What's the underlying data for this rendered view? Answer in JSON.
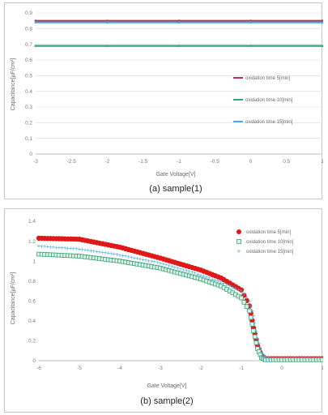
{
  "chart_data": [
    {
      "type": "line",
      "caption": "(a) sample(1)",
      "xlabel": "Gate Voltage[V]",
      "ylabel": "Capacitance[μF/cm²]",
      "xlim": [
        -3,
        1
      ],
      "ylim": [
        0,
        0.9
      ],
      "xticks": [
        "-3",
        "-2.5",
        "-2",
        "-1.5",
        "-1",
        "-0.5",
        "0",
        "0.5",
        "1"
      ],
      "yticks": [
        "0",
        "0.1",
        "0.2",
        "0.3",
        "0.4",
        "0.5",
        "0.6",
        "0.7",
        "0.8",
        "0.9"
      ],
      "grid": true,
      "legend_position": "right",
      "series": [
        {
          "name": "oxidation time 5[min]",
          "color": "#c0304a",
          "x": [
            -3,
            -2,
            -1,
            0,
            1
          ],
          "values": [
            0.85,
            0.85,
            0.85,
            0.85,
            0.85
          ]
        },
        {
          "name": "oxidation time 10[min]",
          "color": "#3aa27a",
          "x": [
            -3,
            -2,
            -1,
            0,
            1
          ],
          "values": [
            0.69,
            0.69,
            0.69,
            0.69,
            0.69
          ]
        },
        {
          "name": "oxidation time 15[min]",
          "color": "#4aa8e0",
          "x": [
            -3,
            -2,
            -1,
            0,
            1
          ],
          "values": [
            0.84,
            0.84,
            0.84,
            0.84,
            0.84
          ]
        }
      ]
    },
    {
      "type": "scatter",
      "caption": "(b) sample(2)",
      "xlabel": "Gate Voltage[V]",
      "ylabel": "Capacitance[μF/cm²]",
      "xlim": [
        -6,
        1
      ],
      "ylim": [
        0,
        1.4
      ],
      "xticks": [
        "-6",
        "-5",
        "-4",
        "-3",
        "-2",
        "-1",
        "0",
        "1"
      ],
      "yticks": [
        "0",
        "0.2",
        "0.4",
        "0.6",
        "0.8",
        "1",
        "1.2",
        "1.4"
      ],
      "grid": false,
      "legend_position": "top-right",
      "series": [
        {
          "name": "oxidation time 5[min]",
          "color": "#e01818",
          "x": [
            -6,
            -5,
            -4,
            -3,
            -2,
            -1.5,
            -1,
            -0.8,
            -0.7,
            -0.6,
            -0.5,
            -0.4,
            0,
            1
          ],
          "values": [
            1.23,
            1.22,
            1.14,
            1.03,
            0.91,
            0.83,
            0.71,
            0.55,
            0.33,
            0.15,
            0.05,
            0.02,
            0.02,
            0.02
          ]
        },
        {
          "name": "oxidation time 10[min]",
          "color": "#3aa27a",
          "x": [
            -6,
            -5,
            -4,
            -3,
            -2,
            -1.5,
            -1,
            -0.8,
            -0.7,
            -0.6,
            -0.5,
            -0.4,
            0,
            1
          ],
          "values": [
            1.07,
            1.05,
            1.0,
            0.93,
            0.82,
            0.75,
            0.63,
            0.5,
            0.3,
            0.12,
            0.03,
            0.01,
            0.01,
            0.01
          ]
        },
        {
          "name": "oxidation time 15[min]",
          "color": "#4aa8e0",
          "x": [
            -6,
            -5,
            -4,
            -3,
            -2,
            -1.5,
            -1,
            -0.8,
            -0.7,
            -0.6,
            -0.5,
            -0.4,
            0,
            1
          ],
          "values": [
            1.15,
            1.12,
            1.06,
            0.98,
            0.86,
            0.79,
            0.7,
            0.6,
            0.45,
            0.22,
            0.08,
            0.03,
            0.03,
            0.03
          ]
        }
      ]
    }
  ]
}
